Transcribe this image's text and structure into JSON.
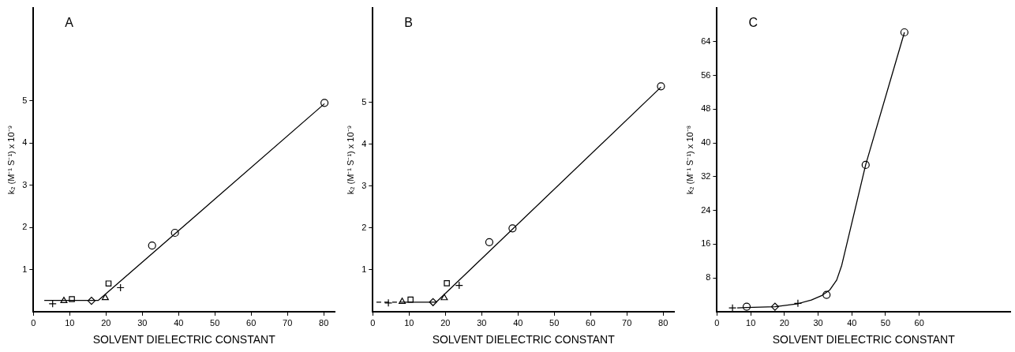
{
  "chart_data": [
    {
      "type": "scatter",
      "title": "A",
      "xlabel": "SOLVENT DIELECTRIC CONSTANT",
      "ylabel": "k₂ (M⁻¹ S⁻¹) x 10⁻⁹",
      "xlim": [
        0,
        83
      ],
      "ylim": [
        0,
        7.2
      ],
      "xticks": [
        0,
        10,
        20,
        30,
        40,
        50,
        60,
        70,
        80
      ],
      "yticks": [
        1,
        2,
        3,
        4,
        5
      ],
      "grid": false,
      "legend": false,
      "series": [
        {
          "type": "line",
          "color": "#000000",
          "marker": "none",
          "x": [
            3.0,
            17.9,
            80.2
          ],
          "values": [
            0.27,
            0.27,
            4.93
          ]
        },
        {
          "color": "#000000",
          "marker": "cross",
          "x": [
            5.3,
            24.0
          ],
          "values": [
            0.19,
            0.57
          ]
        },
        {
          "color": "#000000",
          "marker": "triangle",
          "x": [
            8.4,
            19.8
          ],
          "values": [
            0.26,
            0.33
          ]
        },
        {
          "color": "#000000",
          "marker": "square",
          "x": [
            10.6,
            20.7
          ],
          "values": [
            0.3,
            0.67
          ]
        },
        {
          "color": "#000000",
          "marker": "diamond",
          "x": [
            16.0
          ],
          "values": [
            0.26
          ]
        },
        {
          "color": "#000000",
          "marker": "circle",
          "x": [
            32.7,
            39.0,
            80.2
          ],
          "values": [
            1.57,
            1.87,
            4.95
          ]
        }
      ]
    },
    {
      "type": "scatter",
      "title": "B",
      "xlabel": "SOLVENT DIELECTRIC CONSTANT",
      "ylabel": "k₂ (M⁻¹ S⁻¹) x 10⁻⁹",
      "xlim": [
        0,
        83
      ],
      "ylim": [
        0,
        7.25
      ],
      "xticks": [
        0,
        10,
        20,
        30,
        40,
        50,
        60,
        70,
        80
      ],
      "yticks": [
        1,
        2,
        3,
        4,
        5
      ],
      "grid": false,
      "legend": false,
      "series": [
        {
          "type": "line",
          "color": "#000000",
          "marker": "none",
          "line_style": "dashed",
          "x": [
            1.0,
            7.5
          ],
          "values": [
            0.23,
            0.23
          ]
        },
        {
          "type": "line",
          "color": "#000000",
          "marker": "none",
          "x": [
            7.5,
            17.5,
            79.4
          ],
          "values": [
            0.23,
            0.23,
            5.36
          ]
        },
        {
          "color": "#000000",
          "marker": "cross",
          "x": [
            4.3,
            23.8
          ],
          "values": [
            0.21,
            0.63
          ]
        },
        {
          "color": "#000000",
          "marker": "triangle",
          "x": [
            8.1,
            19.7
          ],
          "values": [
            0.24,
            0.33
          ]
        },
        {
          "color": "#000000",
          "marker": "square",
          "x": [
            10.4,
            20.4
          ],
          "values": [
            0.29,
            0.68
          ]
        },
        {
          "color": "#000000",
          "marker": "diamond",
          "x": [
            16.6
          ],
          "values": [
            0.23
          ]
        },
        {
          "color": "#000000",
          "marker": "circle",
          "x": [
            32.1,
            38.5,
            79.4
          ],
          "values": [
            1.66,
            1.99,
            5.38
          ]
        }
      ]
    },
    {
      "type": "scatter",
      "title": "C",
      "xlabel": "SOLVENT DIELECTRIC CONSTANT",
      "ylabel": "k₂ (M⁻¹ S⁻¹) x 10⁻⁸",
      "xlim": [
        0,
        87
      ],
      "ylim": [
        0,
        72
      ],
      "xticks": [
        0,
        10,
        20,
        30,
        40,
        50,
        60
      ],
      "yticks": [
        8,
        16,
        24,
        32,
        40,
        48,
        56,
        64
      ],
      "grid": false,
      "legend": false,
      "series": [
        {
          "type": "line",
          "color": "#000000",
          "marker": "none",
          "x": [
            6.0,
            8.8,
            17.2,
            24.0,
            28.0,
            31.0,
            33.5,
            35.5,
            37.0,
            38.5,
            44.1,
            55.6
          ],
          "values": [
            0.9,
            1.0,
            1.2,
            1.9,
            2.8,
            3.8,
            5.2,
            7.5,
            11.0,
            16.0,
            34.8,
            66.2
          ]
        },
        {
          "color": "#000000",
          "marker": "cross",
          "x": [
            4.6,
            24.0
          ],
          "values": [
            0.9,
            2.0
          ]
        },
        {
          "color": "#000000",
          "marker": "circle",
          "x": [
            8.8,
            32.5,
            44.1,
            55.6
          ],
          "values": [
            1.2,
            4.0,
            34.8,
            66.2
          ]
        },
        {
          "color": "#000000",
          "marker": "diamond",
          "x": [
            17.2
          ],
          "values": [
            1.2
          ]
        }
      ]
    }
  ]
}
